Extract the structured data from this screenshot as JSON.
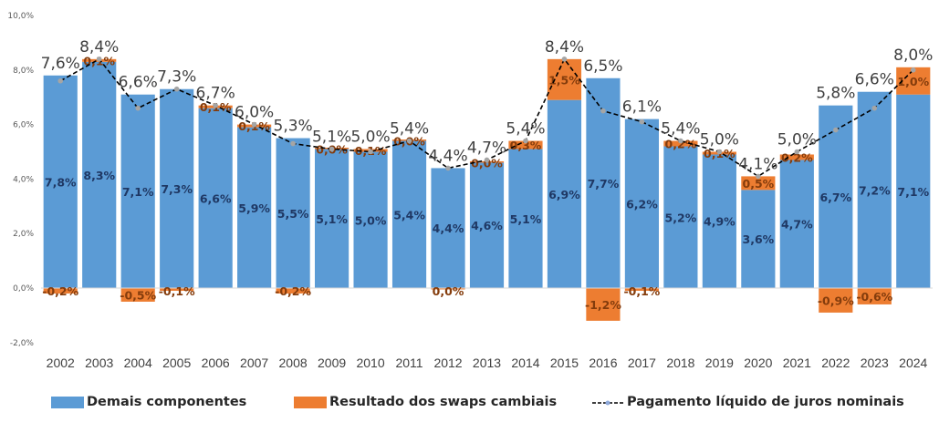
{
  "chart_data": {
    "type": "bar",
    "subtype": "stacked-bar-with-line",
    "title": "",
    "xlabel": "",
    "ylabel": "",
    "ylim": [
      -2.0,
      10.0
    ],
    "yticks": [
      "-2,0%",
      "0,0%",
      "2,0%",
      "4,0%",
      "6,0%",
      "8,0%",
      "10,0%"
    ],
    "ytick_values": [
      -2,
      0,
      2,
      4,
      6,
      8,
      10
    ],
    "grid": false,
    "legend_position": "bottom",
    "categories": [
      "2002",
      "2003",
      "2004",
      "2005",
      "2006",
      "2007",
      "2008",
      "2009",
      "2010",
      "2011",
      "2012",
      "2013",
      "2014",
      "2015",
      "2016",
      "2017",
      "2018",
      "2019",
      "2020",
      "2021",
      "2022",
      "2023",
      "2024"
    ],
    "series": [
      {
        "name": "Demais componentes",
        "type": "bar",
        "color": "#5b9bd5",
        "label_color": "#1f3864",
        "values": [
          7.8,
          8.3,
          7.1,
          7.3,
          6.6,
          5.9,
          5.5,
          5.1,
          5.0,
          5.4,
          4.4,
          4.6,
          5.1,
          6.9,
          7.7,
          6.2,
          5.2,
          4.9,
          3.6,
          4.7,
          6.7,
          7.2,
          7.1
        ],
        "labels": [
          "7,8%",
          "8,3%",
          "7,1%",
          "7,3%",
          "6,6%",
          "5,9%",
          "5,5%",
          "5,1%",
          "5,0%",
          "5,4%",
          "4,4%",
          "4,6%",
          "5,1%",
          "6,9%",
          "7,7%",
          "6,2%",
          "5,2%",
          "4,9%",
          "3,6%",
          "4,7%",
          "6,7%",
          "7,2%",
          "7,1%"
        ]
      },
      {
        "name": "Resultado dos swaps cambiais",
        "type": "bar",
        "color": "#ed7d31",
        "label_color": "#843c0c",
        "values": [
          -0.2,
          0.1,
          -0.5,
          -0.1,
          0.1,
          0.1,
          -0.2,
          0.0,
          0.1,
          0.0,
          0.0,
          0.0,
          0.3,
          1.5,
          -1.2,
          -0.1,
          0.2,
          0.1,
          0.5,
          0.2,
          -0.9,
          -0.6,
          1.0
        ],
        "labels": [
          "-0,2%",
          "0,1%",
          "-0,5%",
          "-0,1%",
          "0,1%",
          "0,1%",
          "-0,2%",
          "0,0%",
          "0,1%",
          "0,0%",
          "0,0%",
          "0,0%",
          "0,3%",
          "1,5%",
          "-1,2%",
          "-0,1%",
          "0,2%",
          "0,1%",
          "0,5%",
          "0,2%",
          "-0,9%",
          "-0,6%",
          "1,0%"
        ]
      },
      {
        "name": "Pagamento líquido de juros nominais",
        "type": "line",
        "color": "#000000",
        "marker_color": "#a5a5a5",
        "dash": true,
        "values": [
          7.6,
          8.4,
          6.6,
          7.3,
          6.7,
          6.0,
          5.3,
          5.1,
          5.0,
          5.4,
          4.4,
          4.7,
          5.4,
          8.4,
          6.5,
          6.1,
          5.4,
          5.0,
          4.1,
          5.0,
          5.8,
          6.6,
          8.0
        ],
        "labels": [
          "7,6%",
          "8,4%",
          "6,6%",
          "7,3%",
          "6,7%",
          "6,0%",
          "5,3%",
          "5,1%",
          "5,0%",
          "5,4%",
          "4,4%",
          "4,7%",
          "5,4%",
          "8,4%",
          "6,5%",
          "6,1%",
          "5,4%",
          "5,0%",
          "4,1%",
          "5,0%",
          "5,8%",
          "6,6%",
          "8,0%"
        ]
      }
    ]
  },
  "legend": {
    "items": [
      {
        "label": "Demais componentes",
        "color": "#5b9bd5"
      },
      {
        "label": "Resultado dos swaps cambiais",
        "color": "#ed7d31"
      },
      {
        "label": "Pagamento líquido de juros nominais",
        "color": "#000000"
      }
    ]
  }
}
